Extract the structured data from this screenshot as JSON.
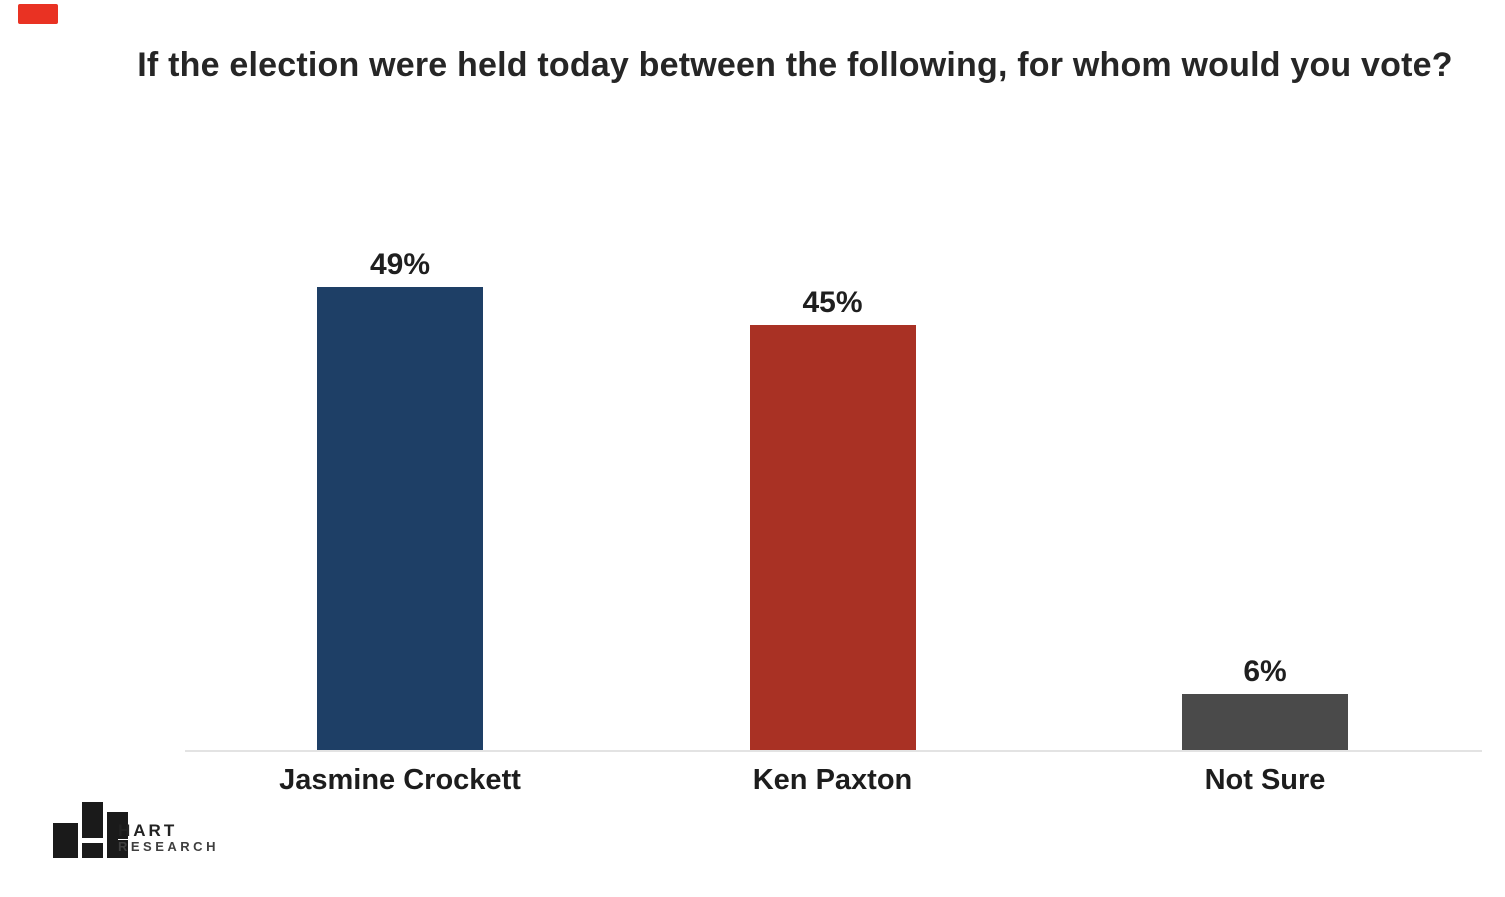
{
  "page": {
    "background": "#ffffff",
    "accent_color": "#e93223"
  },
  "chart_data": {
    "type": "bar",
    "title": "If the election were held today between the following, for whom would you vote?",
    "categories": [
      "Jasmine Crockett",
      "Ken Paxton",
      "Not Sure"
    ],
    "values": [
      49,
      45,
      6
    ],
    "value_labels": [
      "49%",
      "45%",
      "6%"
    ],
    "colors": [
      "#1E3F66",
      "#A93124",
      "#4A4A4A"
    ],
    "unit": "percent",
    "data_labels": true,
    "y_axis_visible": false,
    "gridlines": false,
    "legend": false,
    "baseline_color": "#e3e3e3",
    "text_color": "#1f1f1f"
  },
  "logo": {
    "name": "Hart Research",
    "line1": "HART",
    "line2": "RESEARCH"
  }
}
